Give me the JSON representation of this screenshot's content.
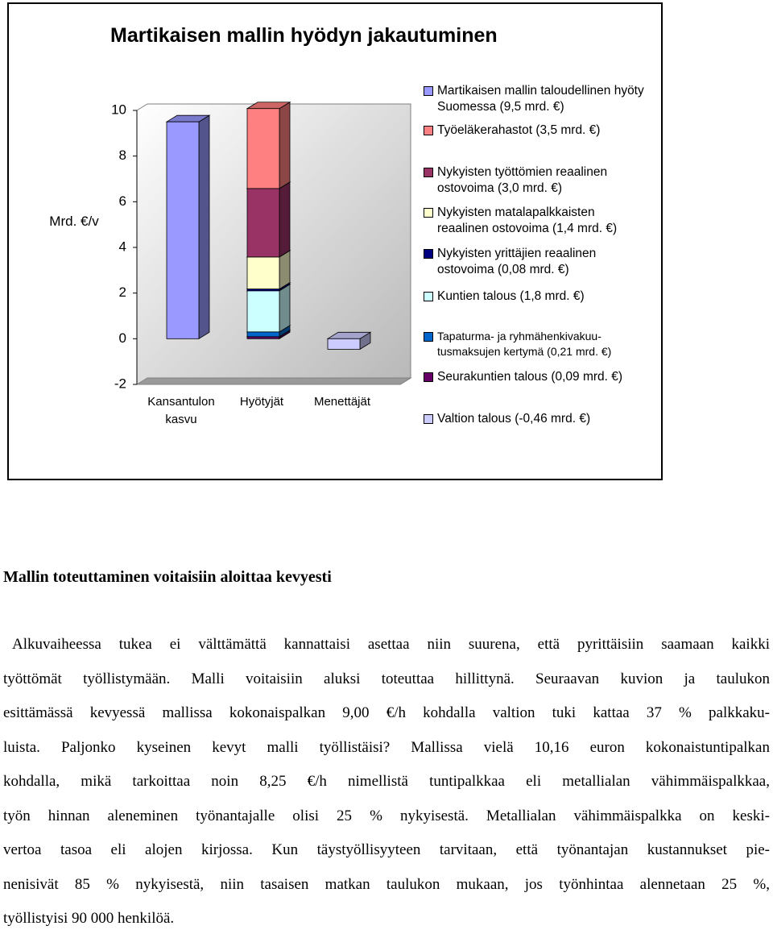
{
  "chart_data": {
    "type": "bar",
    "stacked": true,
    "title": "Martikaisen mallin hyödyn jakautuminen",
    "y_label": "Mrd. €/v",
    "categories": [
      "Kansantulon kasvu",
      "Hyötyjät",
      "Menettäjät"
    ],
    "ylim": [
      -2,
      10
    ],
    "yticks": [
      -2,
      0,
      2,
      4,
      6,
      8,
      10
    ],
    "series": [
      {
        "name": "Martikaisen mallin taloudellinen hyöty Suomessa (9,5 mrd. €)",
        "color": "#9999ff",
        "values": [
          9.5,
          null,
          null
        ]
      },
      {
        "name": "Työeläkerahastot (3,5 mrd. €)",
        "color": "#ff8080",
        "values": [
          null,
          3.5,
          null
        ]
      },
      {
        "name": "Nykyisten työttömien reaalinen ostovoima (3,0 mrd. €)",
        "color": "#993366",
        "values": [
          null,
          3.0,
          null
        ]
      },
      {
        "name": "Nykyisten matalapalkkaisten reaalinen ostovoima (1,4 mrd. €)",
        "color": "#ffffcc",
        "values": [
          null,
          1.4,
          null
        ]
      },
      {
        "name": "Nykyisten yrittäjien reaalinen ostovoima (0,08 mrd. €)",
        "color": "#000080",
        "values": [
          null,
          0.08,
          null
        ]
      },
      {
        "name": "Kuntien talous (1,8 mrd. €)",
        "color": "#ccffff",
        "values": [
          null,
          1.8,
          null
        ]
      },
      {
        "name": "Tapaturma- ja ryhmähenkivakuu-tusmaksujen kertymä (0,21 mrd. €)",
        "color": "#0066cc",
        "values": [
          null,
          0.21,
          null
        ]
      },
      {
        "name": "Seurakuntien talous (0,09 mrd. €)",
        "color": "#660066",
        "values": [
          null,
          0.09,
          null
        ]
      },
      {
        "name": "Valtion talous (-0,46 mrd. €)",
        "color": "#ccccff",
        "values": [
          null,
          null,
          -0.46
        ]
      }
    ]
  },
  "document": {
    "heading": "Mallin toteuttaminen voitaisiin aloittaa kevyesti",
    "lines": [
      "Alkuvaiheessa tukea ei välttämättä kannattaisi asettaa niin suurena, että pyrittäisiin saamaan kaikki",
      "työttömät työllistymään. Malli voitaisiin aluksi toteuttaa hillittynä. Seuraavan kuvion ja taulukon",
      "esittämässä kevyessä mallissa kokonaispalkan 9,00 €/h kohdalla valtion tuki kattaa 37 % palkkaku-",
      "luista. Paljonko kyseinen kevyt malli työllistäisi? Mallissa vielä 10,16 euron kokonaistuntipalkan",
      "kohdalla, mikä tarkoittaa noin 8,25 €/h nimellistä tuntipalkkaa eli metallialan vähimmäispalkkaa,",
      "työn hinnan aleneminen työnantajalle olisi 25 % nykyisestä. Metallialan vähimmäispalkka on keski-",
      "vertoa tasoa eli alojen kirjossa. Kun täystyöllisyyteen tarvitaan, että työnantajan kustannukset pie-",
      "nenisivät 85 % nykyisestä, niin tasaisen matkan taulukon mukaan, jos työnhintaa alennetaan 25 %,",
      "työllistyisi 90 000 henkilöä."
    ]
  }
}
